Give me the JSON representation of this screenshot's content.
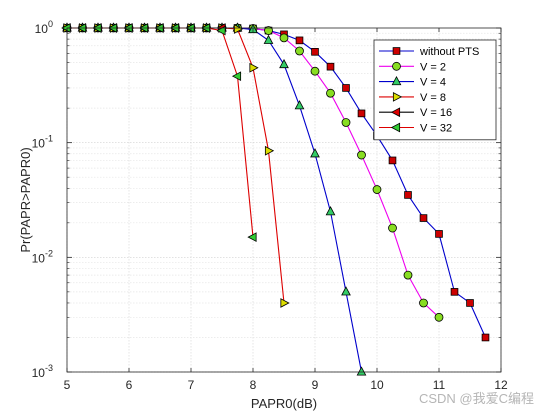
{
  "chart_data": {
    "type": "line",
    "title": "",
    "xlabel": "PAPR0(dB)",
    "ylabel": "Pr(PAPR>PAPR0)",
    "xlim": [
      5,
      12
    ],
    "ylim": [
      0.001,
      1
    ],
    "yscale": "log",
    "grid": true,
    "minor_grid": true,
    "legend_position": "top-right",
    "xticks": [
      5,
      6,
      7,
      8,
      9,
      10,
      11,
      12
    ],
    "xtick_labels": [
      "5",
      "6",
      "7",
      "8",
      "9",
      "10",
      "11",
      "12"
    ],
    "yticks": [
      0.001,
      0.01,
      0.1,
      1
    ],
    "ytick_labels": [
      {
        "base": "10",
        "exp": "-3"
      },
      {
        "base": "10",
        "exp": "-2"
      },
      {
        "base": "10",
        "exp": "-1"
      },
      {
        "base": "10",
        "exp": "0"
      }
    ],
    "series": [
      {
        "name": "without PTS",
        "line_color": "#0000cc",
        "marker": "square",
        "marker_fill": "#cc0000",
        "x": [
          5,
          5.25,
          5.5,
          5.75,
          6,
          6.25,
          6.5,
          6.75,
          7,
          7.25,
          7.5,
          7.75,
          8,
          8.25,
          8.5,
          8.75,
          9,
          9.25,
          9.5,
          9.75,
          10,
          10.25,
          10.5,
          10.75,
          11,
          11.25,
          11.5,
          11.75
        ],
        "y": [
          1,
          1,
          1,
          1,
          1,
          1,
          1,
          1,
          1,
          1,
          1,
          1,
          0.99,
          0.95,
          0.88,
          0.78,
          0.62,
          0.46,
          0.3,
          0.18,
          0.115,
          0.07,
          0.035,
          0.022,
          0.016,
          0.005,
          0.004,
          0.002
        ]
      },
      {
        "name": "V = 2",
        "line_color": "#ee00ee",
        "marker": "circle",
        "marker_fill": "#88dd22",
        "x": [
          5,
          5.25,
          5.5,
          5.75,
          6,
          6.25,
          6.5,
          6.75,
          7,
          7.25,
          7.5,
          7.75,
          8,
          8.25,
          8.5,
          8.75,
          9,
          9.25,
          9.5,
          9.75,
          10,
          10.25,
          10.5,
          10.75,
          11
        ],
        "y": [
          1,
          1,
          1,
          1,
          1,
          1,
          1,
          1,
          1,
          1,
          1,
          1,
          0.99,
          0.95,
          0.82,
          0.63,
          0.42,
          0.27,
          0.15,
          0.078,
          0.039,
          0.018,
          0.007,
          0.004,
          0.003
        ]
      },
      {
        "name": "V = 4",
        "line_color": "#0000cc",
        "marker": "triangle-up",
        "marker_fill": "#33cc66",
        "x": [
          5,
          5.25,
          5.5,
          5.75,
          6,
          6.25,
          6.5,
          6.75,
          7,
          7.25,
          7.5,
          7.75,
          8,
          8.25,
          8.5,
          8.75,
          9,
          9.25,
          9.5,
          9.75
        ],
        "y": [
          1,
          1,
          1,
          1,
          1,
          1,
          1,
          1,
          1,
          1,
          1,
          1,
          0.97,
          0.78,
          0.48,
          0.21,
          0.08,
          0.025,
          0.005,
          0.001
        ]
      },
      {
        "name": "V = 8",
        "line_color": "#dd0000",
        "marker": "triangle-right",
        "marker_fill": "#dddd00",
        "x": [
          5,
          5.25,
          5.5,
          5.75,
          6,
          6.25,
          6.5,
          6.75,
          7,
          7.25,
          7.5,
          7.75,
          8,
          8.25,
          8.5
        ],
        "y": [
          1,
          1,
          1,
          1,
          1,
          1,
          1,
          1,
          1,
          1,
          1,
          0.98,
          0.45,
          0.085,
          0.004
        ]
      },
      {
        "name": "V = 16",
        "line_color": "#000000",
        "marker": "triangle-left",
        "marker_fill": "#dd0000",
        "x": [
          5,
          5.25,
          5.5,
          5.75,
          6,
          6.25,
          6.5,
          6.75,
          7,
          7.25,
          7.5
        ],
        "y": [
          1,
          1,
          1,
          1,
          1,
          1,
          1,
          1,
          1,
          1,
          1
        ]
      },
      {
        "name": "V = 32",
        "line_color": "#dd0000",
        "marker": "triangle-left",
        "marker_fill": "#33cc33",
        "x": [
          5,
          5.25,
          5.5,
          5.75,
          6,
          6.25,
          6.5,
          6.75,
          7,
          7.25,
          7.5,
          7.75,
          8
        ],
        "y": [
          1,
          1,
          1,
          1,
          1,
          1,
          1,
          1,
          1,
          1,
          0.95,
          0.38,
          0.015
        ]
      }
    ]
  },
  "watermark": "CSDN @我爱C编程"
}
